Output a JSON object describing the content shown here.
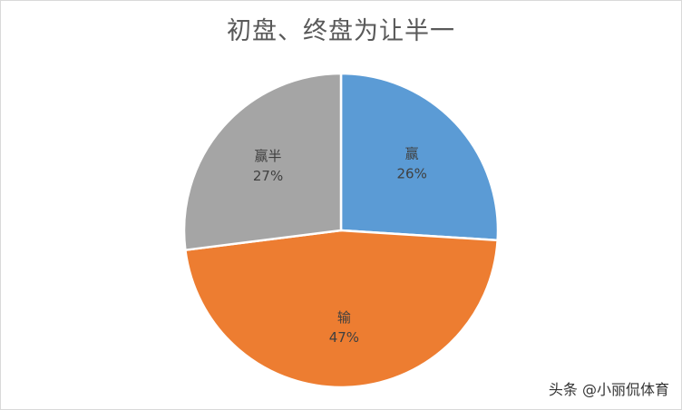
{
  "chart_data": {
    "type": "pie",
    "title": "初盘、终盘为让半一",
    "slices": [
      {
        "label": "赢",
        "value": 26,
        "display": "26%",
        "color": "#5b9bd5"
      },
      {
        "label": "输",
        "value": 47,
        "display": "47%",
        "color": "#ed7d31"
      },
      {
        "label": "赢半",
        "value": 27,
        "display": "27%",
        "color": "#a5a5a5"
      }
    ],
    "legend": "none",
    "label_color": "#404040"
  },
  "watermark": {
    "text": "头条 @小丽侃体育"
  }
}
